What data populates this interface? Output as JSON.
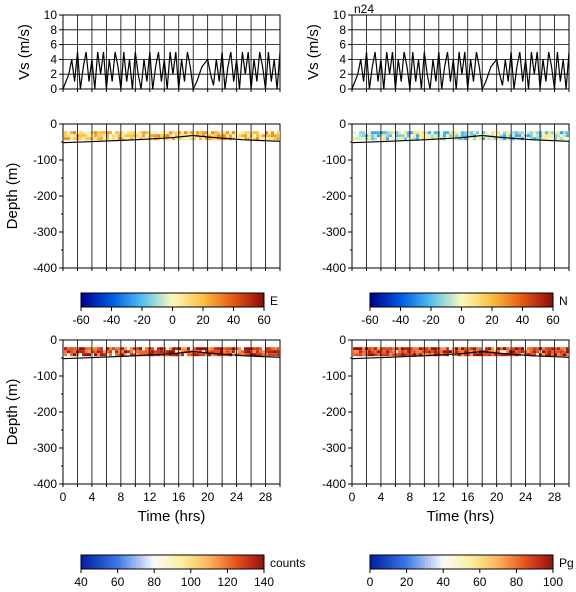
{
  "chart_data": {
    "type": "composite",
    "panels": {
      "vs_left": {
        "type": "line",
        "title": "",
        "ylabel": "Vs (m/s)",
        "ylim": [
          0,
          10
        ],
        "yticks": [
          0,
          2,
          4,
          6,
          8,
          10
        ],
        "xlim": [
          0,
          30
        ],
        "series": [
          {
            "x": [
              0,
              0.8,
              1.2,
              1.6,
              2.0,
              2.4,
              2.8,
              3.2,
              3.6,
              4.0,
              4.4,
              4.8,
              5.2,
              5.6,
              6.0,
              6.4,
              6.8,
              7.2,
              7.6,
              8.0,
              8.4,
              8.8,
              9.2,
              9.6,
              10.0,
              10.4,
              10.8,
              11.2,
              11.6,
              12.0,
              12.4,
              12.8,
              13.2,
              13.6,
              14.0,
              14.4,
              14.8,
              15.2,
              15.6,
              16.0,
              16.4,
              16.8,
              17.2,
              17.6,
              18.0,
              18.5,
              19.2,
              20.0,
              20.4,
              20.8,
              21.2,
              21.6,
              22.0,
              22.4,
              22.8,
              23.2,
              23.6,
              24.0,
              24.4,
              24.8,
              25.2,
              25.6,
              26.0,
              26.4,
              26.8,
              27.2,
              27.6,
              28.0,
              28.4,
              28.8,
              29.2,
              29.6,
              30.0
            ],
            "y": [
              0,
              2,
              4,
              1,
              5,
              0,
              3,
              5,
              1,
              4,
              0,
              5,
              2,
              5,
              0,
              4,
              1,
              5,
              3,
              0,
              5,
              1,
              4,
              0,
              5,
              2,
              0,
              4,
              1,
              5,
              0,
              3,
              5,
              1,
              4,
              0,
              5,
              2,
              5,
              0,
              4,
              1,
              5,
              3,
              0,
              1,
              3,
              4,
              2,
              0.5,
              4,
              1,
              5,
              0,
              3,
              5,
              1,
              4,
              0,
              5,
              2,
              5,
              0,
              4,
              1,
              5,
              3,
              0,
              5,
              1,
              4,
              0,
              5
            ]
          }
        ]
      },
      "vs_right": {
        "type": "line",
        "title": "n24",
        "ylabel": "Vs (m/s)",
        "ylim": [
          0,
          10
        ],
        "yticks": [
          0,
          2,
          4,
          6,
          8,
          10
        ],
        "xlim": [
          0,
          30
        ],
        "series": [
          {
            "x": [
              0,
              0.8,
              1.2,
              1.6,
              2.0,
              2.4,
              2.8,
              3.2,
              3.6,
              4.0,
              4.4,
              4.8,
              5.2,
              5.6,
              6.0,
              6.4,
              6.8,
              7.2,
              7.6,
              8.0,
              8.4,
              8.8,
              9.2,
              9.6,
              10.0,
              10.4,
              10.8,
              11.2,
              11.6,
              12.0,
              12.4,
              12.8,
              13.2,
              13.6,
              14.0,
              14.4,
              14.8,
              15.2,
              15.6,
              16.0,
              16.4,
              16.8,
              17.2,
              17.6,
              18.0,
              18.5,
              19.2,
              20.0,
              20.4,
              20.8,
              21.2,
              21.6,
              22.0,
              22.4,
              22.8,
              23.2,
              23.6,
              24.0,
              24.4,
              24.8,
              25.2,
              25.6,
              26.0,
              26.4,
              26.8,
              27.2,
              27.6,
              28.0,
              28.4,
              28.8,
              29.2,
              29.6,
              30.0
            ],
            "y": [
              0,
              2,
              4,
              1,
              5,
              0,
              3,
              5,
              1,
              4,
              0,
              5,
              2,
              5,
              0,
              4,
              1,
              5,
              3,
              0,
              5,
              1,
              4,
              0,
              5,
              2,
              0,
              4,
              1,
              5,
              0,
              3,
              5,
              1,
              4,
              0,
              5,
              2,
              5,
              0,
              4,
              1,
              5,
              3,
              0,
              1,
              3,
              4,
              2,
              0.5,
              4,
              1,
              5,
              0,
              3,
              5,
              1,
              4,
              0,
              5,
              2,
              5,
              0,
              4,
              1,
              5,
              3,
              0,
              5,
              1,
              4,
              0,
              5
            ]
          }
        ]
      },
      "depth_panels": [
        {
          "id": "E",
          "ylabel": "Depth (m)",
          "cbar_label": "E",
          "colormap": "diverging",
          "cbar_ticks": [
            "-60",
            "-40",
            "-20",
            "0",
            "20",
            "40",
            "60"
          ],
          "cbar_range": [
            -60,
            60
          ],
          "fill_value": 15
        },
        {
          "id": "N",
          "ylabel": "",
          "cbar_label": "N",
          "colormap": "diverging",
          "cbar_ticks": [
            "-60",
            "-40",
            "-20",
            "0",
            "20",
            "40",
            "60"
          ],
          "cbar_range": [
            -60,
            60
          ],
          "fill_value": -8
        },
        {
          "id": "counts",
          "ylabel": "Depth (m)",
          "xlabel": "Time (hrs)",
          "cbar_label": "counts",
          "colormap": "sequential",
          "cbar_ticks": [
            "40",
            "60",
            "80",
            "100",
            "120",
            "140"
          ],
          "cbar_range": [
            40,
            140
          ],
          "fill_value": 128
        },
        {
          "id": "Pg",
          "ylabel": "",
          "xlabel": "Time (hrs)",
          "cbar_label": "Pg",
          "colormap": "sequential",
          "cbar_ticks": [
            "0",
            "20",
            "40",
            "60",
            "80",
            "100"
          ],
          "cbar_range": [
            0,
            100
          ],
          "fill_value": 88
        }
      ],
      "depth_axis": {
        "ylim": [
          -400,
          0
        ],
        "yticks": [
          "0",
          "-100",
          "-200",
          "-300",
          "-400"
        ],
        "xlim": [
          0,
          30
        ],
        "xticks": [
          "0",
          "4",
          "8",
          "12",
          "16",
          "20",
          "24",
          "28"
        ],
        "bottom_depth": {
          "x": [
            0,
            5,
            10,
            15,
            18,
            20,
            25,
            30
          ],
          "y": [
            -52,
            -48,
            -44,
            -38,
            -32,
            -36,
            -44,
            -48
          ]
        },
        "data_band": [
          -20,
          -45
        ]
      }
    }
  }
}
